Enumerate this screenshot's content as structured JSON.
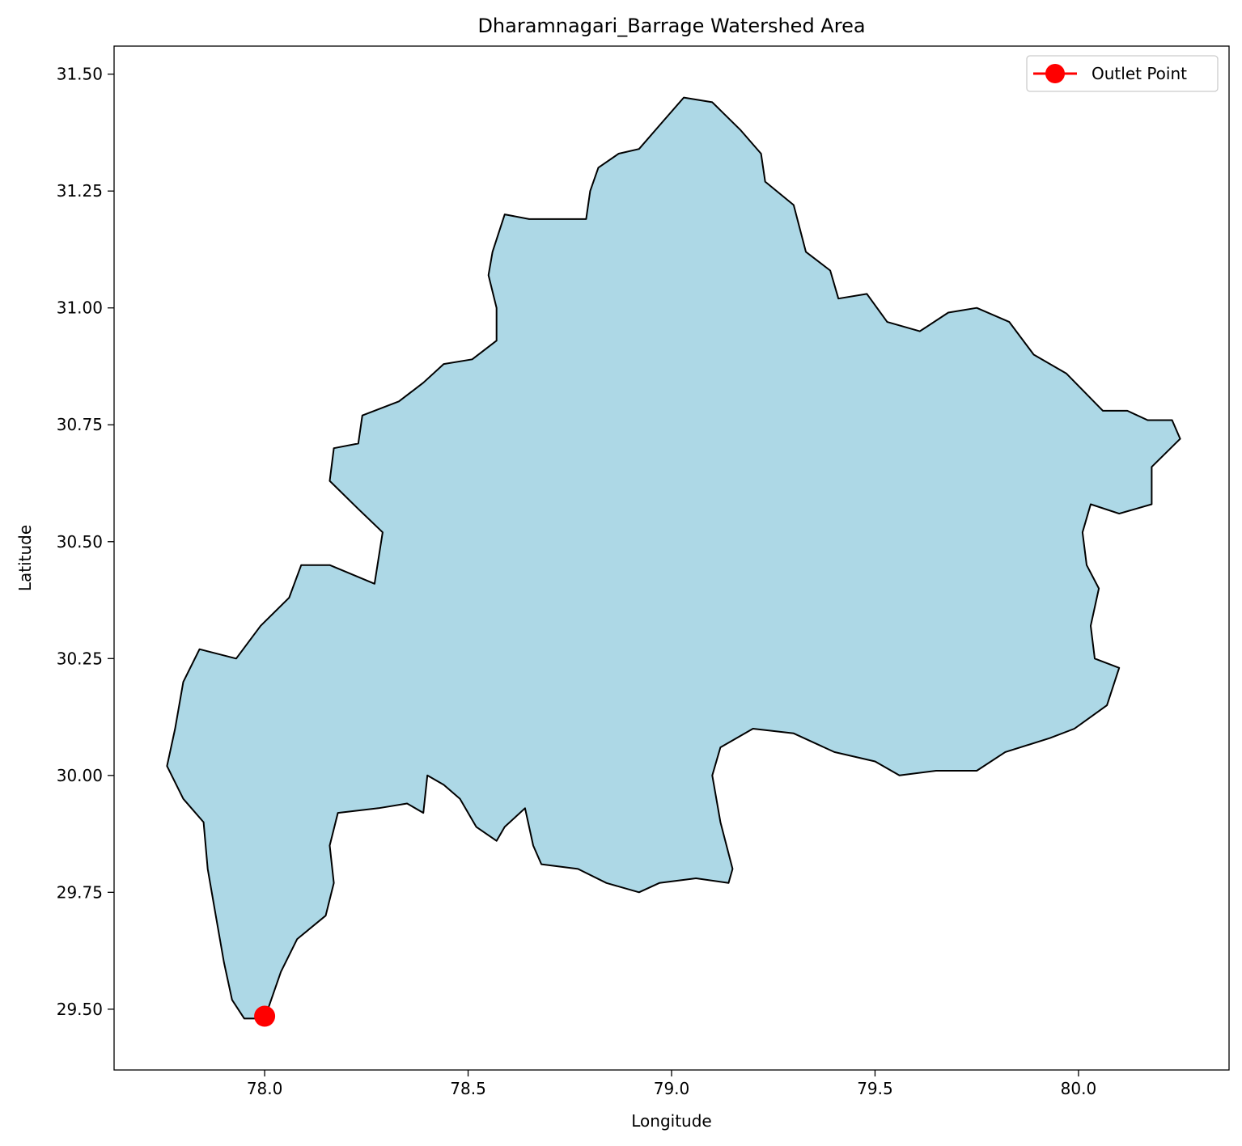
{
  "chart_data": {
    "type": "map",
    "title": "Dharamnagari_Barrage Watershed Area",
    "xlabel": "Longitude",
    "ylabel": "Latitude",
    "xlim": [
      77.63,
      80.37
    ],
    "ylim": [
      29.37,
      31.56
    ],
    "xticks": [
      78.0,
      78.5,
      79.0,
      79.5,
      80.0
    ],
    "xtick_labels": [
      "78.0",
      "78.5",
      "79.0",
      "79.5",
      "80.0"
    ],
    "yticks": [
      29.5,
      29.75,
      30.0,
      30.25,
      30.5,
      30.75,
      31.0,
      31.25,
      31.5
    ],
    "ytick_labels": [
      "29.50",
      "29.75",
      "30.00",
      "30.25",
      "30.50",
      "30.75",
      "31.00",
      "31.25",
      "31.50"
    ],
    "grid": false,
    "legend": {
      "position": "upper-right",
      "entries": [
        "Outlet Point"
      ]
    },
    "watershed": {
      "fill_color": "#add8e6",
      "edge_color": "#000000",
      "boundary": [
        [
          78.0,
          29.48
        ],
        [
          77.95,
          29.48
        ],
        [
          77.92,
          29.52
        ],
        [
          77.9,
          29.6
        ],
        [
          77.88,
          29.7
        ],
        [
          77.86,
          29.8
        ],
        [
          77.85,
          29.9
        ],
        [
          77.8,
          29.95
        ],
        [
          77.76,
          30.02
        ],
        [
          77.78,
          30.1
        ],
        [
          77.8,
          30.2
        ],
        [
          77.84,
          30.27
        ],
        [
          77.93,
          30.25
        ],
        [
          77.99,
          30.32
        ],
        [
          78.06,
          30.38
        ],
        [
          78.09,
          30.45
        ],
        [
          78.16,
          30.45
        ],
        [
          78.27,
          30.41
        ],
        [
          78.29,
          30.52
        ],
        [
          78.23,
          30.57
        ],
        [
          78.16,
          30.63
        ],
        [
          78.17,
          30.7
        ],
        [
          78.23,
          30.71
        ],
        [
          78.24,
          30.77
        ],
        [
          78.33,
          30.8
        ],
        [
          78.39,
          30.84
        ],
        [
          78.44,
          30.88
        ],
        [
          78.51,
          30.89
        ],
        [
          78.57,
          30.93
        ],
        [
          78.57,
          31.0
        ],
        [
          78.55,
          31.07
        ],
        [
          78.56,
          31.12
        ],
        [
          78.59,
          31.2
        ],
        [
          78.65,
          31.19
        ],
        [
          78.69,
          31.19
        ],
        [
          78.79,
          31.19
        ],
        [
          78.8,
          31.25
        ],
        [
          78.82,
          31.3
        ],
        [
          78.87,
          31.33
        ],
        [
          78.92,
          31.34
        ],
        [
          78.98,
          31.4
        ],
        [
          79.03,
          31.45
        ],
        [
          79.1,
          31.44
        ],
        [
          79.17,
          31.38
        ],
        [
          79.22,
          31.33
        ],
        [
          79.23,
          31.27
        ],
        [
          79.3,
          31.22
        ],
        [
          79.33,
          31.12
        ],
        [
          79.39,
          31.08
        ],
        [
          79.41,
          31.02
        ],
        [
          79.48,
          31.03
        ],
        [
          79.53,
          30.97
        ],
        [
          79.61,
          30.95
        ],
        [
          79.68,
          30.99
        ],
        [
          79.75,
          31.0
        ],
        [
          79.83,
          30.97
        ],
        [
          79.89,
          30.9
        ],
        [
          79.97,
          30.86
        ],
        [
          80.06,
          30.78
        ],
        [
          80.12,
          30.78
        ],
        [
          80.17,
          30.76
        ],
        [
          80.23,
          30.76
        ],
        [
          80.25,
          30.72
        ],
        [
          80.18,
          30.66
        ],
        [
          80.18,
          30.58
        ],
        [
          80.1,
          30.56
        ],
        [
          80.03,
          30.58
        ],
        [
          80.01,
          30.52
        ],
        [
          80.02,
          30.45
        ],
        [
          80.05,
          30.4
        ],
        [
          80.03,
          30.32
        ],
        [
          80.04,
          30.25
        ],
        [
          80.1,
          30.23
        ],
        [
          80.07,
          30.15
        ],
        [
          79.99,
          30.1
        ],
        [
          79.93,
          30.08
        ],
        [
          79.82,
          30.05
        ],
        [
          79.75,
          30.01
        ],
        [
          79.65,
          30.01
        ],
        [
          79.56,
          30.0
        ],
        [
          79.5,
          30.03
        ],
        [
          79.4,
          30.05
        ],
        [
          79.3,
          30.09
        ],
        [
          79.2,
          30.1
        ],
        [
          79.12,
          30.06
        ],
        [
          79.1,
          30.0
        ],
        [
          79.12,
          29.9
        ],
        [
          79.15,
          29.8
        ],
        [
          79.14,
          29.77
        ],
        [
          79.06,
          29.78
        ],
        [
          78.97,
          29.77
        ],
        [
          78.92,
          29.75
        ],
        [
          78.84,
          29.77
        ],
        [
          78.77,
          29.8
        ],
        [
          78.68,
          29.81
        ],
        [
          78.66,
          29.85
        ],
        [
          78.64,
          29.93
        ],
        [
          78.59,
          29.89
        ],
        [
          78.57,
          29.86
        ],
        [
          78.52,
          29.89
        ],
        [
          78.48,
          29.95
        ],
        [
          78.44,
          29.98
        ],
        [
          78.4,
          30.0
        ],
        [
          78.39,
          29.92
        ],
        [
          78.35,
          29.94
        ],
        [
          78.28,
          29.93
        ],
        [
          78.18,
          29.92
        ],
        [
          78.16,
          29.85
        ],
        [
          78.17,
          29.77
        ],
        [
          78.15,
          29.7
        ],
        [
          78.08,
          29.65
        ],
        [
          78.04,
          29.58
        ],
        [
          78.0,
          29.48
        ]
      ]
    },
    "outlet_point": {
      "lon": 78.0,
      "lat": 29.485,
      "color": "#ff0000",
      "label": "Outlet Point"
    }
  }
}
